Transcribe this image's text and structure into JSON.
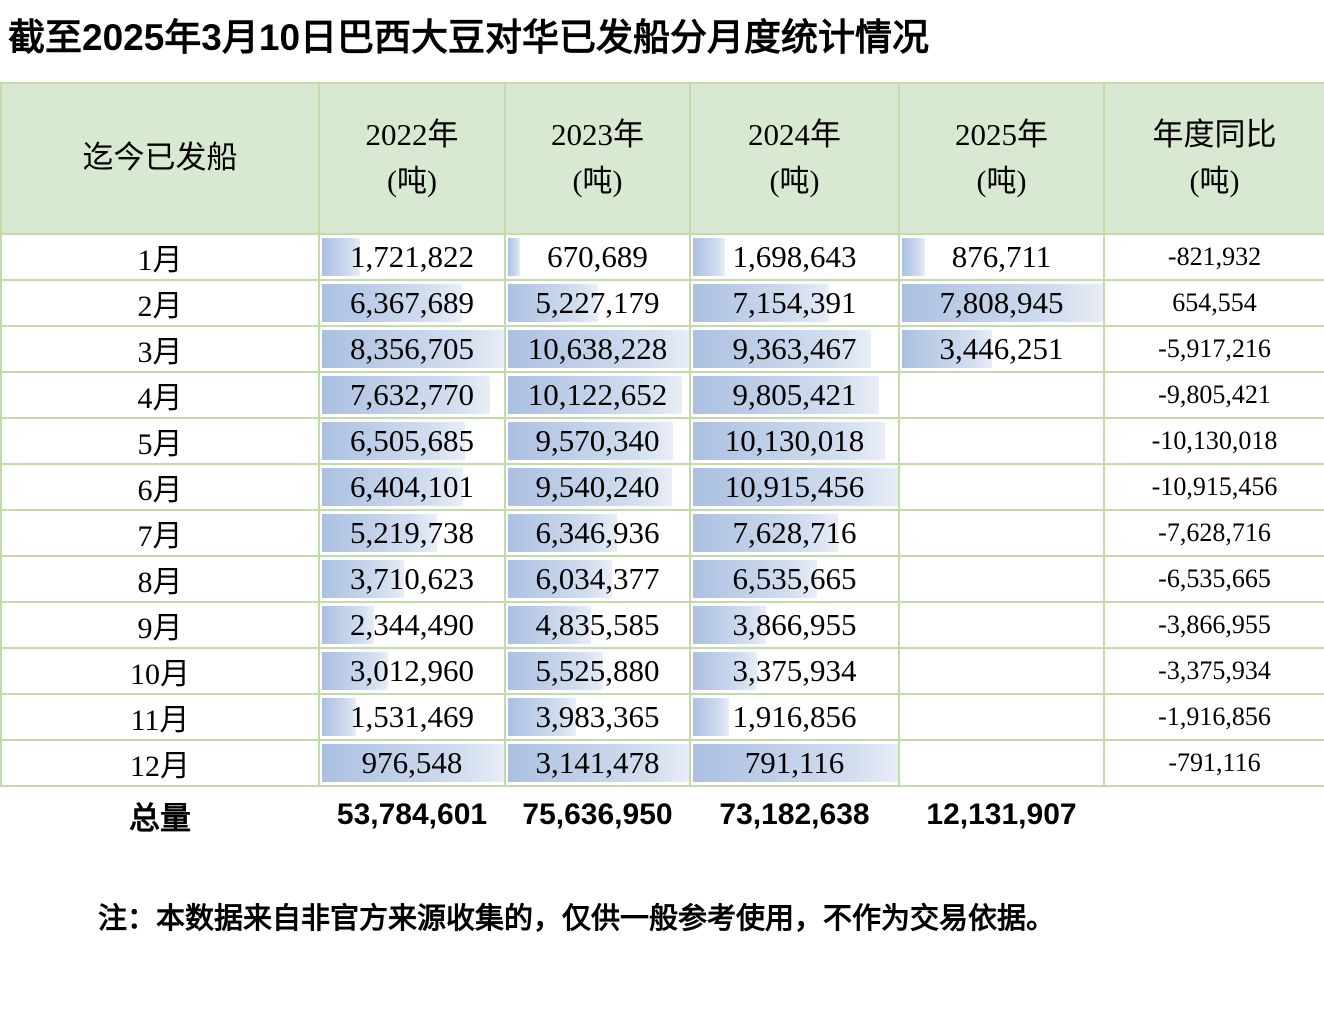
{
  "page": {
    "title": "截至2025年3月10日巴西大豆对华已发船分月度统计情况",
    "footnote": "注：本数据来自非官方来源收集的，仅供一般参考使用，不作为交易依据。"
  },
  "colors": {
    "header_bg": "#d9e8d1",
    "grid_border": "#c2dbaa",
    "databar_start": "#abc0e1",
    "databar_mid": "#d3deef",
    "databar_end": "#e9eef7"
  },
  "table": {
    "header": {
      "label_col": "迄今已发船",
      "year_cols": [
        {
          "label": "2022年",
          "unit": "(吨)"
        },
        {
          "label": "2023年",
          "unit": "(吨)"
        },
        {
          "label": "2024年",
          "unit": "(吨)"
        },
        {
          "label": "2025年",
          "unit": "(吨)"
        }
      ],
      "yoy_col": {
        "label": "年度同比",
        "unit": "(吨)"
      }
    },
    "rows": [
      {
        "month": "1月",
        "cells": [
          {
            "v": "1,721,822",
            "bar": 20.6
          },
          {
            "v": "670,689",
            "bar": 6.3
          },
          {
            "v": "1,698,643",
            "bar": 15.6
          },
          {
            "v": "876,711",
            "bar": 11.2
          }
        ],
        "yoy": "-821,932"
      },
      {
        "month": "2月",
        "cells": [
          {
            "v": "6,367,689",
            "bar": 76.2
          },
          {
            "v": "5,227,179",
            "bar": 49.1
          },
          {
            "v": "7,154,391",
            "bar": 65.5
          },
          {
            "v": "7,808,945",
            "bar": 100
          }
        ],
        "yoy": "654,554"
      },
      {
        "month": "3月",
        "cells": [
          {
            "v": "8,356,705",
            "bar": 100
          },
          {
            "v": "10,638,228",
            "bar": 100
          },
          {
            "v": "9,363,467",
            "bar": 85.8
          },
          {
            "v": "3,446,251",
            "bar": 44.1
          }
        ],
        "yoy": "-5,917,216"
      },
      {
        "month": "4月",
        "cells": [
          {
            "v": "7,632,770",
            "bar": 91.3
          },
          {
            "v": "10,122,652",
            "bar": 95.2
          },
          {
            "v": "9,805,421",
            "bar": 89.8
          },
          null
        ],
        "yoy": "-9,805,421"
      },
      {
        "month": "5月",
        "cells": [
          {
            "v": "6,505,685",
            "bar": 77.8
          },
          {
            "v": "9,570,340",
            "bar": 90.0
          },
          {
            "v": "10,130,018",
            "bar": 92.8
          },
          null
        ],
        "yoy": "-10,130,018"
      },
      {
        "month": "6月",
        "cells": [
          {
            "v": "6,404,101",
            "bar": 76.6
          },
          {
            "v": "9,540,240",
            "bar": 89.7
          },
          {
            "v": "10,915,456",
            "bar": 100
          },
          null
        ],
        "yoy": "-10,915,456"
      },
      {
        "month": "7月",
        "cells": [
          {
            "v": "5,219,738",
            "bar": 62.5
          },
          {
            "v": "6,346,936",
            "bar": 59.7
          },
          {
            "v": "7,628,716",
            "bar": 69.9
          },
          null
        ],
        "yoy": "-7,628,716"
      },
      {
        "month": "8月",
        "cells": [
          {
            "v": "3,710,623",
            "bar": 44.4
          },
          {
            "v": "6,034,377",
            "bar": 56.7
          },
          {
            "v": "6,535,665",
            "bar": 59.9
          },
          null
        ],
        "yoy": "-6,535,665"
      },
      {
        "month": "9月",
        "cells": [
          {
            "v": "2,344,490",
            "bar": 28.1
          },
          {
            "v": "4,835,585",
            "bar": 45.5
          },
          {
            "v": "3,866,955",
            "bar": 35.4
          },
          null
        ],
        "yoy": "-3,866,955"
      },
      {
        "month": "10月",
        "cells": [
          {
            "v": "3,012,960",
            "bar": 36.1
          },
          {
            "v": "5,525,880",
            "bar": 51.9
          },
          {
            "v": "3,375,934",
            "bar": 30.9
          },
          null
        ],
        "yoy": "-3,375,934"
      },
      {
        "month": "11月",
        "cells": [
          {
            "v": "1,531,469",
            "bar": 18.3
          },
          {
            "v": "3,983,365",
            "bar": 37.4
          },
          {
            "v": "1,916,856",
            "bar": 17.6
          },
          null
        ],
        "yoy": "-1,916,856"
      },
      {
        "month": "12月",
        "cells": [
          {
            "v": "976,548",
            "bar": 100
          },
          {
            "v": "3,141,478",
            "bar": 100
          },
          {
            "v": "791,116",
            "bar": 100
          },
          null
        ],
        "yoy": "-791,116"
      }
    ],
    "total": {
      "label": "总量",
      "values": [
        "53,784,601",
        "75,636,950",
        "73,182,638",
        "12,131,907"
      ],
      "yoy": ""
    }
  },
  "chart_data": {
    "type": "table",
    "title": "截至2025年3月10日巴西大豆对华已发船分月度统计情况",
    "categories": [
      "1月",
      "2月",
      "3月",
      "4月",
      "5月",
      "6月",
      "7月",
      "8月",
      "9月",
      "10月",
      "11月",
      "12月"
    ],
    "series": [
      {
        "name": "2022年(吨)",
        "values": [
          1721822,
          6367689,
          8356705,
          7632770,
          6505685,
          6404101,
          5219738,
          3710623,
          2344490,
          3012960,
          1531469,
          976548
        ]
      },
      {
        "name": "2023年(吨)",
        "values": [
          670689,
          5227179,
          10638228,
          10122652,
          9570340,
          9540240,
          6346936,
          6034377,
          4835585,
          5525880,
          3983365,
          3141478
        ]
      },
      {
        "name": "2024年(吨)",
        "values": [
          1698643,
          7154391,
          9363467,
          9805421,
          10130018,
          10915456,
          7628716,
          6535665,
          3866955,
          3375934,
          1916856,
          791116
        ]
      },
      {
        "name": "2025年(吨)",
        "values": [
          876711,
          7808945,
          3446251,
          null,
          null,
          null,
          null,
          null,
          null,
          null,
          null,
          null
        ]
      },
      {
        "name": "年度同比(吨)",
        "values": [
          -821932,
          654554,
          -5917216,
          -9805421,
          -10130018,
          -10915456,
          -7628716,
          -6535665,
          -3866955,
          -3375934,
          -1916856,
          -791116
        ]
      }
    ],
    "totals": {
      "2022年": 53784601,
      "2023年": 75636950,
      "2024年": 73182638,
      "2025年": 12131907
    },
    "notes": "数据条为按列最大值比例的蓝色渐变条；12月行为整格渐变填充"
  }
}
